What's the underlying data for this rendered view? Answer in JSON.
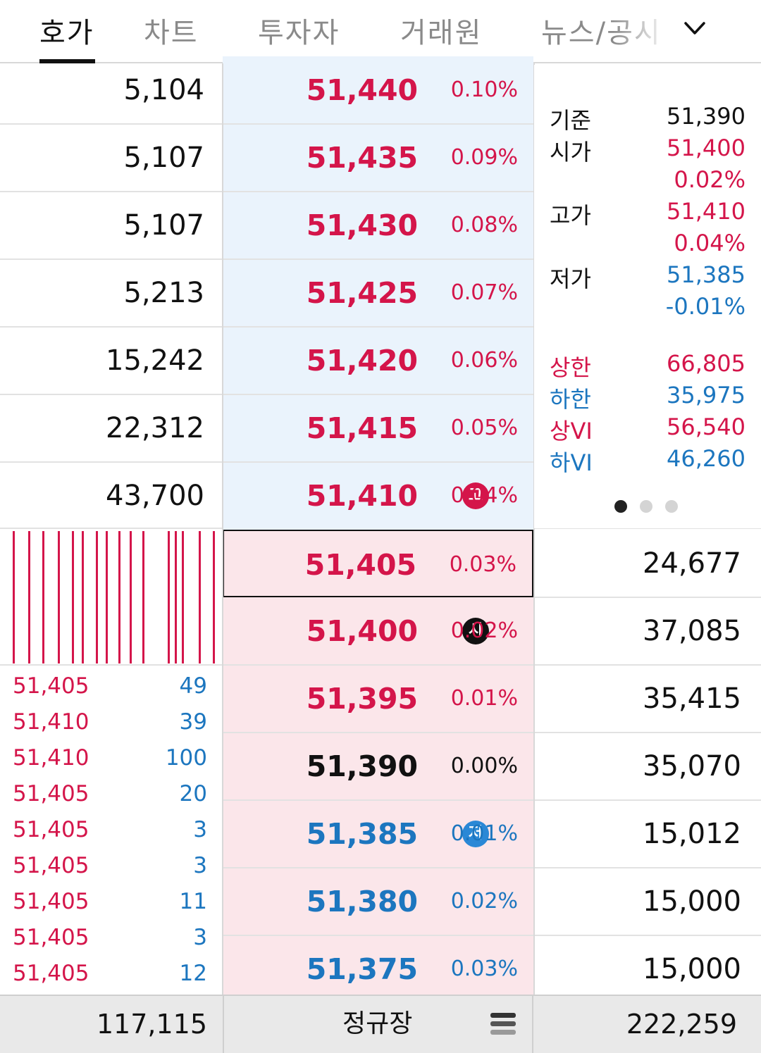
{
  "tabs": [
    {
      "label": "호가",
      "active": true
    },
    {
      "label": "차트",
      "active": false
    },
    {
      "label": "투자자",
      "active": false
    },
    {
      "label": "거래원",
      "active": false
    },
    {
      "label": "뉴스/공시",
      "active": false
    }
  ],
  "colors": {
    "up": "#d4154a",
    "down": "#1c76bf",
    "neutral": "#111111",
    "ask_bg": "#eaf3fc",
    "bid_bg": "#fbe6ea"
  },
  "asks": [
    {
      "qty": "5,104",
      "price": "51,440",
      "rate": "0.10%",
      "dir": "up"
    },
    {
      "qty": "5,107",
      "price": "51,435",
      "rate": "0.09%",
      "dir": "up"
    },
    {
      "qty": "5,107",
      "price": "51,430",
      "rate": "0.08%",
      "dir": "up"
    },
    {
      "qty": "5,213",
      "price": "51,425",
      "rate": "0.07%",
      "dir": "up"
    },
    {
      "qty": "15,242",
      "price": "51,420",
      "rate": "0.06%",
      "dir": "up"
    },
    {
      "qty": "22,312",
      "price": "51,415",
      "rate": "0.05%",
      "dir": "up"
    },
    {
      "qty": "43,700",
      "price": "51,410",
      "rate": "0.04%",
      "dir": "up",
      "badge": "고"
    }
  ],
  "bids": [
    {
      "price": "51,405",
      "rate": "0.03%",
      "dir": "up",
      "qty": "24,677",
      "current": true
    },
    {
      "price": "51,400",
      "rate": "0.02%",
      "dir": "up",
      "qty": "37,085",
      "badge": "시"
    },
    {
      "price": "51,395",
      "rate": "0.01%",
      "dir": "up",
      "qty": "35,415"
    },
    {
      "price": "51,390",
      "rate": "0.00%",
      "dir": "flat",
      "qty": "35,070"
    },
    {
      "price": "51,385",
      "rate": "0.01%",
      "dir": "down",
      "qty": "15,012",
      "badge": "저"
    },
    {
      "price": "51,380",
      "rate": "0.02%",
      "dir": "down",
      "qty": "15,000"
    },
    {
      "price": "51,375",
      "rate": "0.03%",
      "dir": "down",
      "qty": "15,000"
    }
  ],
  "info": {
    "base_label": "기준",
    "base_value": "51,390",
    "open_label": "시가",
    "open_value": "51,400",
    "open_rate": "0.02%",
    "high_label": "고가",
    "high_value": "51,410",
    "high_rate": "0.04%",
    "low_label": "저가",
    "low_value": "51,385",
    "low_rate": "-0.01%",
    "upper_limit_label": "상한",
    "upper_limit_value": "66,805",
    "lower_limit_label": "하한",
    "lower_limit_value": "35,975",
    "upper_vi_label": "상VI",
    "upper_vi_value": "56,540",
    "lower_vi_label": "하VI",
    "lower_vi_value": "46,260"
  },
  "pager": {
    "count": 3,
    "active_index": 0
  },
  "trades": [
    {
      "price": "51,405",
      "vol": "49"
    },
    {
      "price": "51,410",
      "vol": "39"
    },
    {
      "price": "51,410",
      "vol": "100"
    },
    {
      "price": "51,405",
      "vol": "20"
    },
    {
      "price": "51,405",
      "vol": "3"
    },
    {
      "price": "51,405",
      "vol": "3"
    },
    {
      "price": "51,405",
      "vol": "11"
    },
    {
      "price": "51,405",
      "vol": "3"
    },
    {
      "price": "51,405",
      "vol": "12"
    }
  ],
  "footer": {
    "total_ask_qty": "117,115",
    "session_label": "정규장",
    "total_bid_qty": "222,259"
  },
  "icons": {
    "dropdown": "chevron-down-icon",
    "menu": "hamburger-menu-icon"
  }
}
